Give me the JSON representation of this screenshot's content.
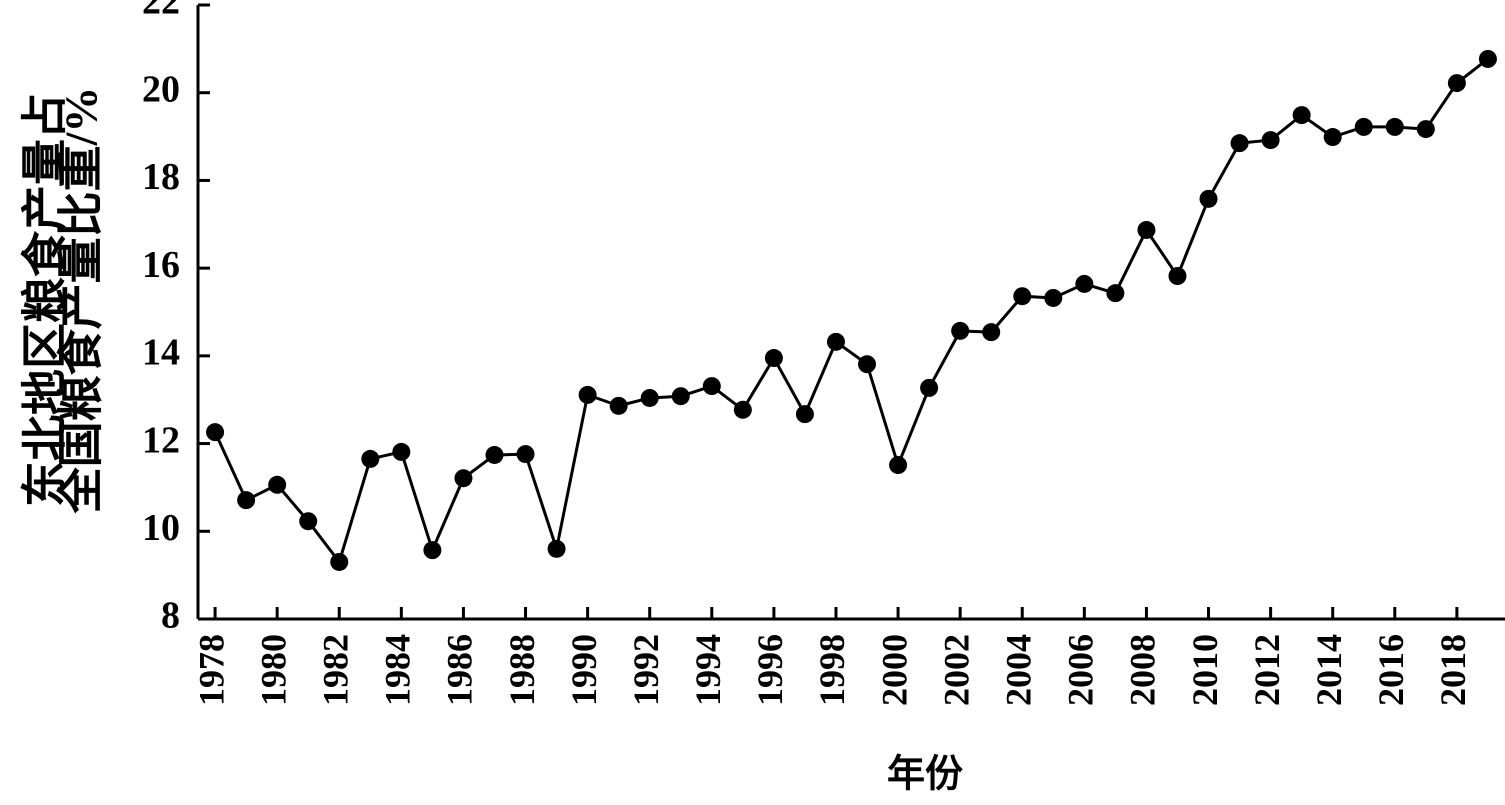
{
  "chart_data": {
    "type": "line",
    "ylabel": [
      "东北地区粮食产量占",
      "全国粮食产量比重/%"
    ],
    "xlabel": "年份",
    "x": [
      1978,
      1979,
      1980,
      1981,
      1982,
      1983,
      1984,
      1985,
      1986,
      1987,
      1988,
      1989,
      1990,
      1991,
      1992,
      1993,
      1994,
      1995,
      1996,
      1997,
      1998,
      1999,
      2000,
      2001,
      2002,
      2003,
      2004,
      2005,
      2006,
      2007,
      2008,
      2009,
      2010,
      2011,
      2012,
      2013,
      2014,
      2015,
      2016,
      2017,
      2018,
      2019
    ],
    "series": [
      {
        "color": "#000000",
        "values": [
          12.26,
          10.71,
          11.06,
          10.23,
          9.3,
          11.65,
          11.81,
          9.57,
          11.21,
          11.74,
          11.76,
          9.6,
          13.11,
          12.86,
          13.04,
          13.08,
          13.31,
          12.77,
          13.95,
          12.67,
          14.32,
          13.81,
          11.51,
          13.27,
          14.57,
          14.54,
          15.36,
          15.32,
          15.64,
          15.43,
          16.87,
          15.82,
          17.58,
          18.85,
          18.92,
          19.49,
          18.99,
          19.22,
          19.22,
          19.17,
          20.22,
          20.77
        ]
      }
    ],
    "xlim": [
      1977.45,
      2019.55
    ],
    "xticks": [
      1978,
      1980,
      1982,
      1984,
      1986,
      1988,
      1990,
      1992,
      1994,
      1996,
      1998,
      2000,
      2002,
      2004,
      2006,
      2008,
      2010,
      2012,
      2014,
      2016,
      2018
    ],
    "ylim": [
      8,
      22
    ],
    "yticks": [
      8,
      10,
      12,
      14,
      16,
      18,
      20,
      22
    ]
  }
}
